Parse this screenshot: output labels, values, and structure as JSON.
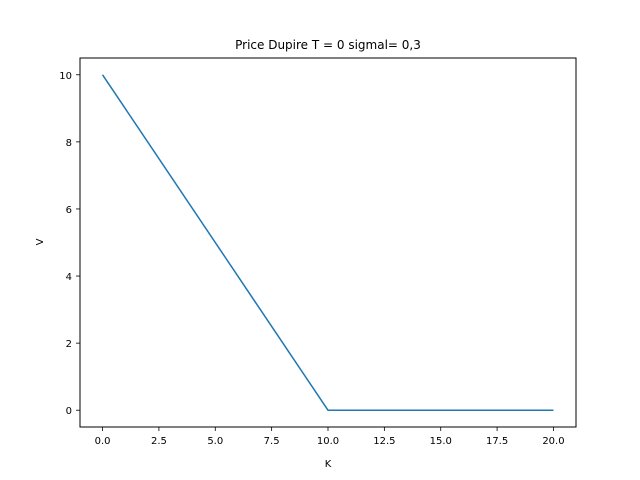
{
  "chart_data": {
    "type": "line",
    "title": "Price Dupire T = 0 sigmal= 0,3",
    "xlabel": "K",
    "ylabel": "V",
    "xlim": [
      -1,
      21
    ],
    "ylim": [
      -0.5,
      10.5
    ],
    "xticks": [
      0.0,
      2.5,
      5.0,
      7.5,
      10.0,
      12.5,
      15.0,
      17.5,
      20.0
    ],
    "xtick_labels": [
      "0.0",
      "2.5",
      "5.0",
      "7.5",
      "10.0",
      "12.5",
      "15.0",
      "17.5",
      "20.0"
    ],
    "yticks": [
      0,
      2,
      4,
      6,
      8,
      10
    ],
    "ytick_labels": [
      "0",
      "2",
      "4",
      "6",
      "8",
      "10"
    ],
    "grid": false,
    "series": [
      {
        "color": "#1f77b4",
        "x": [
          0,
          10,
          20
        ],
        "y": [
          10,
          0,
          0
        ]
      }
    ]
  }
}
